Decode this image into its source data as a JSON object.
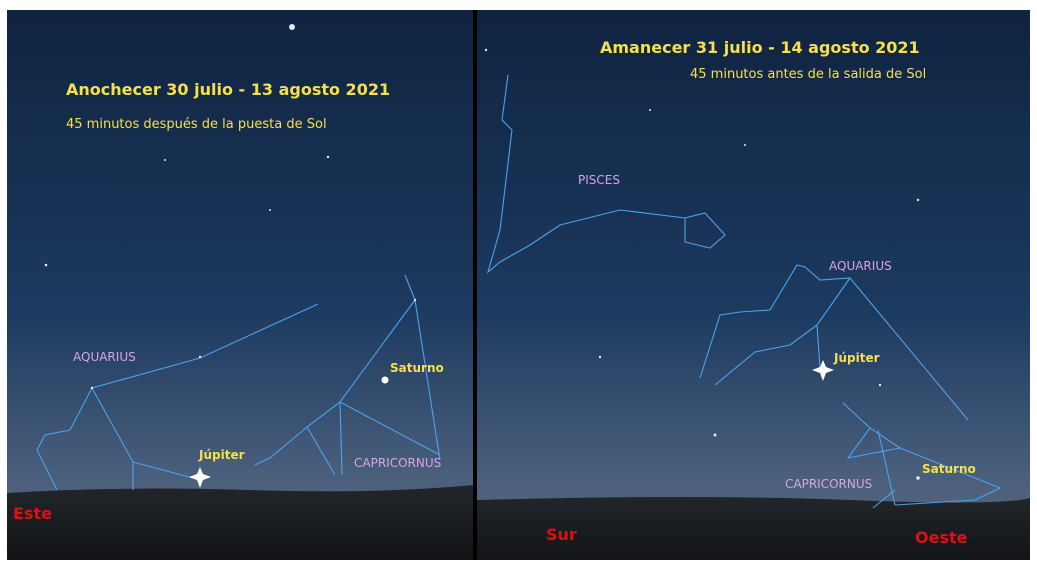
{
  "left_panel": {
    "title": "Anochecer 30 julio - 13 agosto 2021",
    "subtitle": "45 minutos después de la puesta de Sol",
    "labels": {
      "aquarius": "AQUARIUS",
      "saturn": "Saturno",
      "jupiter": "Júpiter",
      "capricornus": "CAPRICORNUS",
      "direction": "Este"
    }
  },
  "right_panel": {
    "title": "Amanecer 31 julio - 14 agosto 2021",
    "subtitle": "45 minutos antes de la salida de Sol",
    "labels": {
      "pisces": "PISCES",
      "aquarius": "AQUARIUS",
      "jupiter": "Júpiter",
      "saturn": "Saturno",
      "capricornus": "CAPRICORNUS",
      "direction_south": "Sur",
      "direction_west": "Oeste"
    }
  }
}
